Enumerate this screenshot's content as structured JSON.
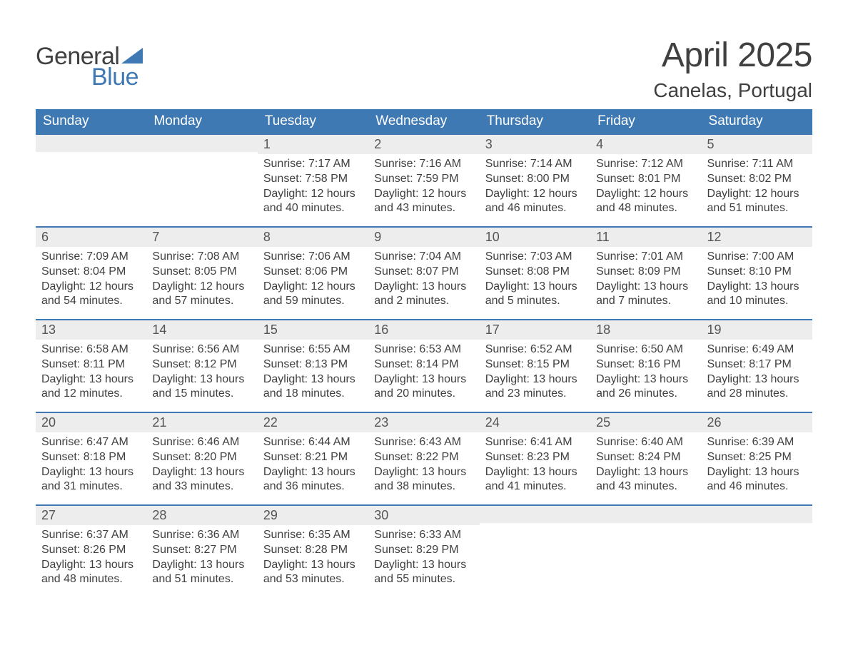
{
  "logo": {
    "word1": "General",
    "word2": "Blue",
    "sail_color": "#3e79b4"
  },
  "title": "April 2025",
  "location": "Canelas, Portugal",
  "colors": {
    "header_bg": "#3e79b4",
    "header_text": "#ffffff",
    "daynum_bg": "#ededed",
    "week_border": "#3e79b4",
    "body_text": "#404040"
  },
  "fonts": {
    "title_size": 48,
    "location_size": 28,
    "dayhead_size": 19,
    "daynum_size": 18,
    "cell_size": 16
  },
  "day_names": [
    "Sunday",
    "Monday",
    "Tuesday",
    "Wednesday",
    "Thursday",
    "Friday",
    "Saturday"
  ],
  "weeks": [
    [
      {
        "num": "",
        "sunrise": "",
        "sunset": "",
        "daylight1": "",
        "daylight2": ""
      },
      {
        "num": "",
        "sunrise": "",
        "sunset": "",
        "daylight1": "",
        "daylight2": ""
      },
      {
        "num": "1",
        "sunrise": "Sunrise: 7:17 AM",
        "sunset": "Sunset: 7:58 PM",
        "daylight1": "Daylight: 12 hours",
        "daylight2": "and 40 minutes."
      },
      {
        "num": "2",
        "sunrise": "Sunrise: 7:16 AM",
        "sunset": "Sunset: 7:59 PM",
        "daylight1": "Daylight: 12 hours",
        "daylight2": "and 43 minutes."
      },
      {
        "num": "3",
        "sunrise": "Sunrise: 7:14 AM",
        "sunset": "Sunset: 8:00 PM",
        "daylight1": "Daylight: 12 hours",
        "daylight2": "and 46 minutes."
      },
      {
        "num": "4",
        "sunrise": "Sunrise: 7:12 AM",
        "sunset": "Sunset: 8:01 PM",
        "daylight1": "Daylight: 12 hours",
        "daylight2": "and 48 minutes."
      },
      {
        "num": "5",
        "sunrise": "Sunrise: 7:11 AM",
        "sunset": "Sunset: 8:02 PM",
        "daylight1": "Daylight: 12 hours",
        "daylight2": "and 51 minutes."
      }
    ],
    [
      {
        "num": "6",
        "sunrise": "Sunrise: 7:09 AM",
        "sunset": "Sunset: 8:04 PM",
        "daylight1": "Daylight: 12 hours",
        "daylight2": "and 54 minutes."
      },
      {
        "num": "7",
        "sunrise": "Sunrise: 7:08 AM",
        "sunset": "Sunset: 8:05 PM",
        "daylight1": "Daylight: 12 hours",
        "daylight2": "and 57 minutes."
      },
      {
        "num": "8",
        "sunrise": "Sunrise: 7:06 AM",
        "sunset": "Sunset: 8:06 PM",
        "daylight1": "Daylight: 12 hours",
        "daylight2": "and 59 minutes."
      },
      {
        "num": "9",
        "sunrise": "Sunrise: 7:04 AM",
        "sunset": "Sunset: 8:07 PM",
        "daylight1": "Daylight: 13 hours",
        "daylight2": "and 2 minutes."
      },
      {
        "num": "10",
        "sunrise": "Sunrise: 7:03 AM",
        "sunset": "Sunset: 8:08 PM",
        "daylight1": "Daylight: 13 hours",
        "daylight2": "and 5 minutes."
      },
      {
        "num": "11",
        "sunrise": "Sunrise: 7:01 AM",
        "sunset": "Sunset: 8:09 PM",
        "daylight1": "Daylight: 13 hours",
        "daylight2": "and 7 minutes."
      },
      {
        "num": "12",
        "sunrise": "Sunrise: 7:00 AM",
        "sunset": "Sunset: 8:10 PM",
        "daylight1": "Daylight: 13 hours",
        "daylight2": "and 10 minutes."
      }
    ],
    [
      {
        "num": "13",
        "sunrise": "Sunrise: 6:58 AM",
        "sunset": "Sunset: 8:11 PM",
        "daylight1": "Daylight: 13 hours",
        "daylight2": "and 12 minutes."
      },
      {
        "num": "14",
        "sunrise": "Sunrise: 6:56 AM",
        "sunset": "Sunset: 8:12 PM",
        "daylight1": "Daylight: 13 hours",
        "daylight2": "and 15 minutes."
      },
      {
        "num": "15",
        "sunrise": "Sunrise: 6:55 AM",
        "sunset": "Sunset: 8:13 PM",
        "daylight1": "Daylight: 13 hours",
        "daylight2": "and 18 minutes."
      },
      {
        "num": "16",
        "sunrise": "Sunrise: 6:53 AM",
        "sunset": "Sunset: 8:14 PM",
        "daylight1": "Daylight: 13 hours",
        "daylight2": "and 20 minutes."
      },
      {
        "num": "17",
        "sunrise": "Sunrise: 6:52 AM",
        "sunset": "Sunset: 8:15 PM",
        "daylight1": "Daylight: 13 hours",
        "daylight2": "and 23 minutes."
      },
      {
        "num": "18",
        "sunrise": "Sunrise: 6:50 AM",
        "sunset": "Sunset: 8:16 PM",
        "daylight1": "Daylight: 13 hours",
        "daylight2": "and 26 minutes."
      },
      {
        "num": "19",
        "sunrise": "Sunrise: 6:49 AM",
        "sunset": "Sunset: 8:17 PM",
        "daylight1": "Daylight: 13 hours",
        "daylight2": "and 28 minutes."
      }
    ],
    [
      {
        "num": "20",
        "sunrise": "Sunrise: 6:47 AM",
        "sunset": "Sunset: 8:18 PM",
        "daylight1": "Daylight: 13 hours",
        "daylight2": "and 31 minutes."
      },
      {
        "num": "21",
        "sunrise": "Sunrise: 6:46 AM",
        "sunset": "Sunset: 8:20 PM",
        "daylight1": "Daylight: 13 hours",
        "daylight2": "and 33 minutes."
      },
      {
        "num": "22",
        "sunrise": "Sunrise: 6:44 AM",
        "sunset": "Sunset: 8:21 PM",
        "daylight1": "Daylight: 13 hours",
        "daylight2": "and 36 minutes."
      },
      {
        "num": "23",
        "sunrise": "Sunrise: 6:43 AM",
        "sunset": "Sunset: 8:22 PM",
        "daylight1": "Daylight: 13 hours",
        "daylight2": "and 38 minutes."
      },
      {
        "num": "24",
        "sunrise": "Sunrise: 6:41 AM",
        "sunset": "Sunset: 8:23 PM",
        "daylight1": "Daylight: 13 hours",
        "daylight2": "and 41 minutes."
      },
      {
        "num": "25",
        "sunrise": "Sunrise: 6:40 AM",
        "sunset": "Sunset: 8:24 PM",
        "daylight1": "Daylight: 13 hours",
        "daylight2": "and 43 minutes."
      },
      {
        "num": "26",
        "sunrise": "Sunrise: 6:39 AM",
        "sunset": "Sunset: 8:25 PM",
        "daylight1": "Daylight: 13 hours",
        "daylight2": "and 46 minutes."
      }
    ],
    [
      {
        "num": "27",
        "sunrise": "Sunrise: 6:37 AM",
        "sunset": "Sunset: 8:26 PM",
        "daylight1": "Daylight: 13 hours",
        "daylight2": "and 48 minutes."
      },
      {
        "num": "28",
        "sunrise": "Sunrise: 6:36 AM",
        "sunset": "Sunset: 8:27 PM",
        "daylight1": "Daylight: 13 hours",
        "daylight2": "and 51 minutes."
      },
      {
        "num": "29",
        "sunrise": "Sunrise: 6:35 AM",
        "sunset": "Sunset: 8:28 PM",
        "daylight1": "Daylight: 13 hours",
        "daylight2": "and 53 minutes."
      },
      {
        "num": "30",
        "sunrise": "Sunrise: 6:33 AM",
        "sunset": "Sunset: 8:29 PM",
        "daylight1": "Daylight: 13 hours",
        "daylight2": "and 55 minutes."
      },
      {
        "num": "",
        "sunrise": "",
        "sunset": "",
        "daylight1": "",
        "daylight2": ""
      },
      {
        "num": "",
        "sunrise": "",
        "sunset": "",
        "daylight1": "",
        "daylight2": ""
      },
      {
        "num": "",
        "sunrise": "",
        "sunset": "",
        "daylight1": "",
        "daylight2": ""
      }
    ]
  ]
}
